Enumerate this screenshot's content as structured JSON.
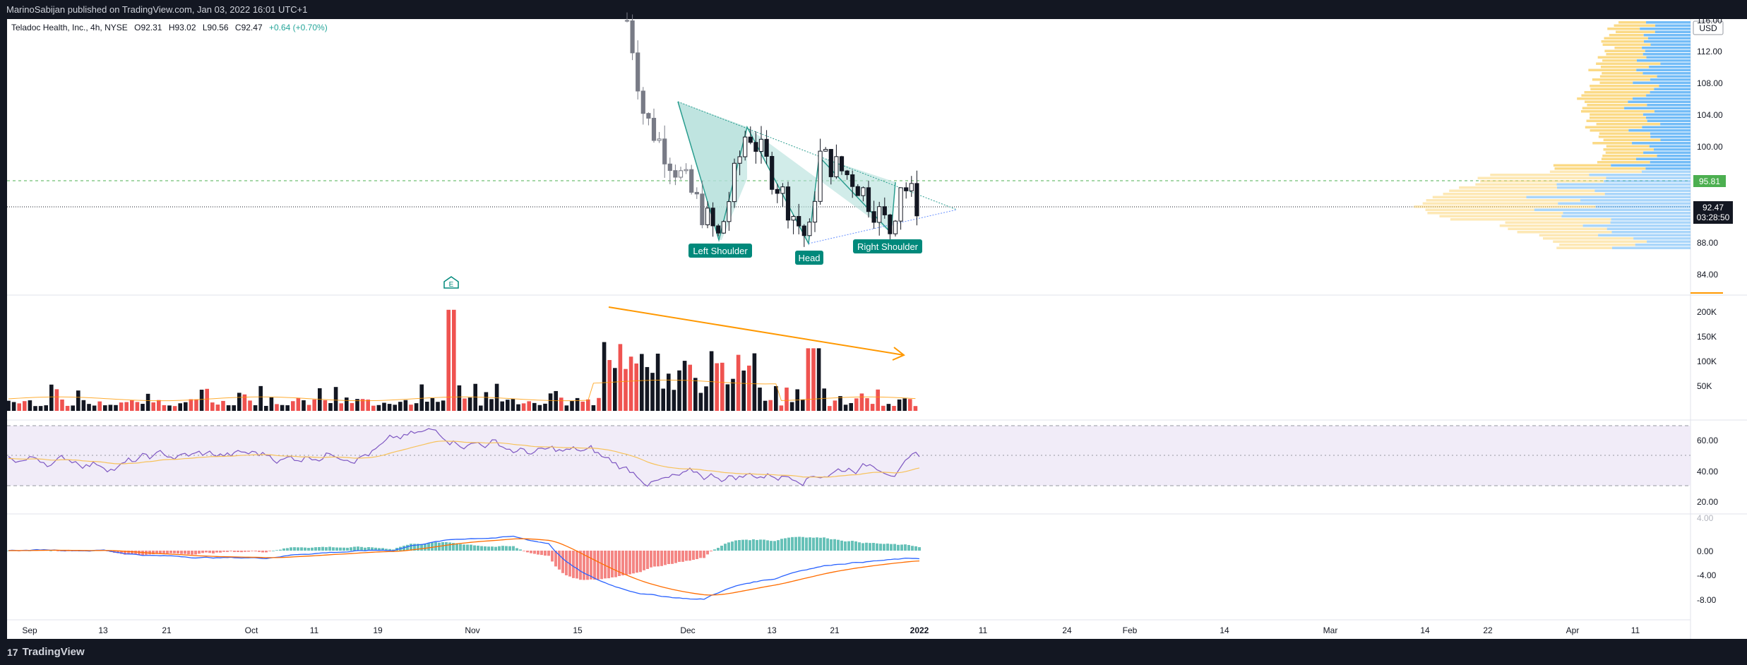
{
  "header": {
    "published_text": "MarinoSabijan published on TradingView.com, Jan 03, 2022 16:01 UTC+1"
  },
  "footer": {
    "brand": "TradingView",
    "logo_mark": "17"
  },
  "legend": {
    "symbol": "Teladoc Health, Inc., 4h, NYSE",
    "open": "O92.31",
    "high": "H93.02",
    "low": "L90.56",
    "close": "C92.47",
    "change": "+0.64 (+0.70%)"
  },
  "colors": {
    "up": "#26a69a",
    "down": "#ef5350",
    "candle_up_body": "#ffffff",
    "candle_dark": "#131722",
    "pattern_fill": "#b2dfdb",
    "pattern_line": "#2a9d8f",
    "rsi": "#7e57c2",
    "rsi_ma": "#f7c25a",
    "macd": "#2962ff",
    "signal": "#ff6d00",
    "volume_profile_up": "#fbd679",
    "volume_profile_down": "#64b5f6",
    "arrow": "#ff9800",
    "price_tag": "#131722",
    "level_tag": "#4caf50"
  },
  "price_axis": {
    "currency": "USD",
    "ticks": [
      "116.00",
      "112.00",
      "108.00",
      "104.00",
      "100.00",
      "88.00",
      "84.00"
    ],
    "level_label": "95.81",
    "last_price": "92.47",
    "countdown": "03:28:50"
  },
  "volume_axis": {
    "ticks": [
      "200K",
      "150K",
      "100K",
      "50K"
    ]
  },
  "rsi_axis": {
    "ticks": [
      "60.00",
      "40.00",
      "20.00"
    ]
  },
  "macd_axis": {
    "ticks": [
      "4.00",
      "0.00",
      "-4.00",
      "-8.00"
    ]
  },
  "time_axis": {
    "labels": [
      "Sep",
      "13",
      "21",
      "Oct",
      "11",
      "19",
      "Nov",
      "15",
      "Dec",
      "13",
      "21",
      "2022",
      "11",
      "24",
      "Feb",
      "14",
      "Mar",
      "14",
      "22",
      "Apr",
      "11"
    ]
  },
  "annotations": {
    "left_shoulder": "Left Shoulder",
    "head": "Head",
    "right_shoulder": "Right Shoulder",
    "earnings_marker": "E"
  },
  "chart_data": {
    "type": "candlestick",
    "title": "Teladoc Health, Inc., 4h, NYSE",
    "ylim": [
      82,
      118
    ],
    "pattern": "Inverse head and shoulders",
    "last_close": 92.47,
    "level": 95.81,
    "price_swings": [
      {
        "x": "Nov 29",
        "y": 116
      },
      {
        "x": "Dec 1",
        "y": 104
      },
      {
        "x": "Dec 7",
        "y": 88.5
      },
      {
        "x": "Dec 9",
        "y": 102.5
      },
      {
        "x": "Dec 16",
        "y": 88
      },
      {
        "x": "Dec 17",
        "y": 99
      },
      {
        "x": "Dec 23",
        "y": 96
      },
      {
        "x": "Dec 28",
        "y": 89.5
      },
      {
        "x": "Dec 30",
        "y": 95.8
      },
      {
        "x": "Jan 3",
        "y": 92.47
      }
    ],
    "volume": {
      "ylim": [
        0,
        220000
      ],
      "notable": [
        {
          "x": "Oct 29",
          "value": 210000
        },
        {
          "x": "Nov 22",
          "value": 160000
        },
        {
          "x": "Dec 17",
          "value": 130000
        }
      ]
    },
    "rsi": {
      "ylim": [
        15,
        75
      ],
      "overbought": 70,
      "oversold": 30,
      "last": 45
    },
    "macd": {
      "ylim": [
        -9,
        5
      ],
      "last_macd": -1.2,
      "last_signal": -1.5
    }
  }
}
